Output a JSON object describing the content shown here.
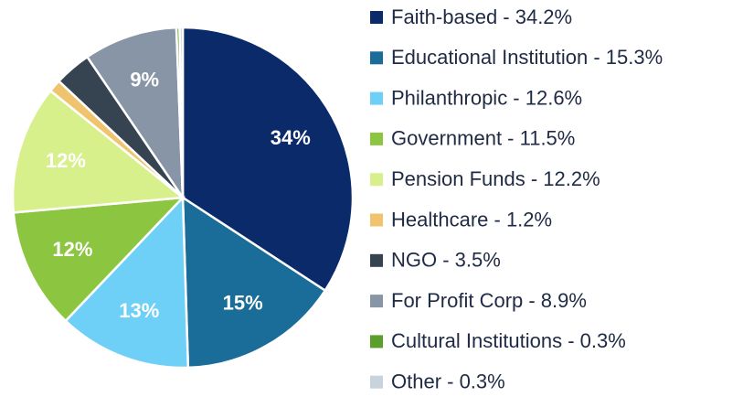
{
  "chart_data": {
    "type": "pie",
    "categories": [
      "Faith-based - 34.2%",
      "Educational Institution - 15.3%",
      "Philanthropic - 12.6%",
      "Government - 11.5%",
      "Pension Funds - 12.2%",
      "Healthcare - 1.2%",
      "NGO - 3.5%",
      "For Profit Corp - 8.9%",
      "Cultural Institutions - 0.3%",
      "Other - 0.3%"
    ],
    "values": [
      34.2,
      15.3,
      12.6,
      11.5,
      12.2,
      1.2,
      3.5,
      8.9,
      0.3,
      0.3
    ],
    "value_labels": [
      "34%",
      "15%",
      "13%",
      "12%",
      "12%",
      null,
      null,
      "9%",
      null,
      null
    ],
    "colors": [
      "#0b2a6a",
      "#1a6d98",
      "#6ed0f6",
      "#8cc640",
      "#d8f08b",
      "#f0c46e",
      "#364452",
      "#8795a6",
      "#5a9e2c",
      "#c9d3dc"
    ],
    "legend": "right"
  }
}
